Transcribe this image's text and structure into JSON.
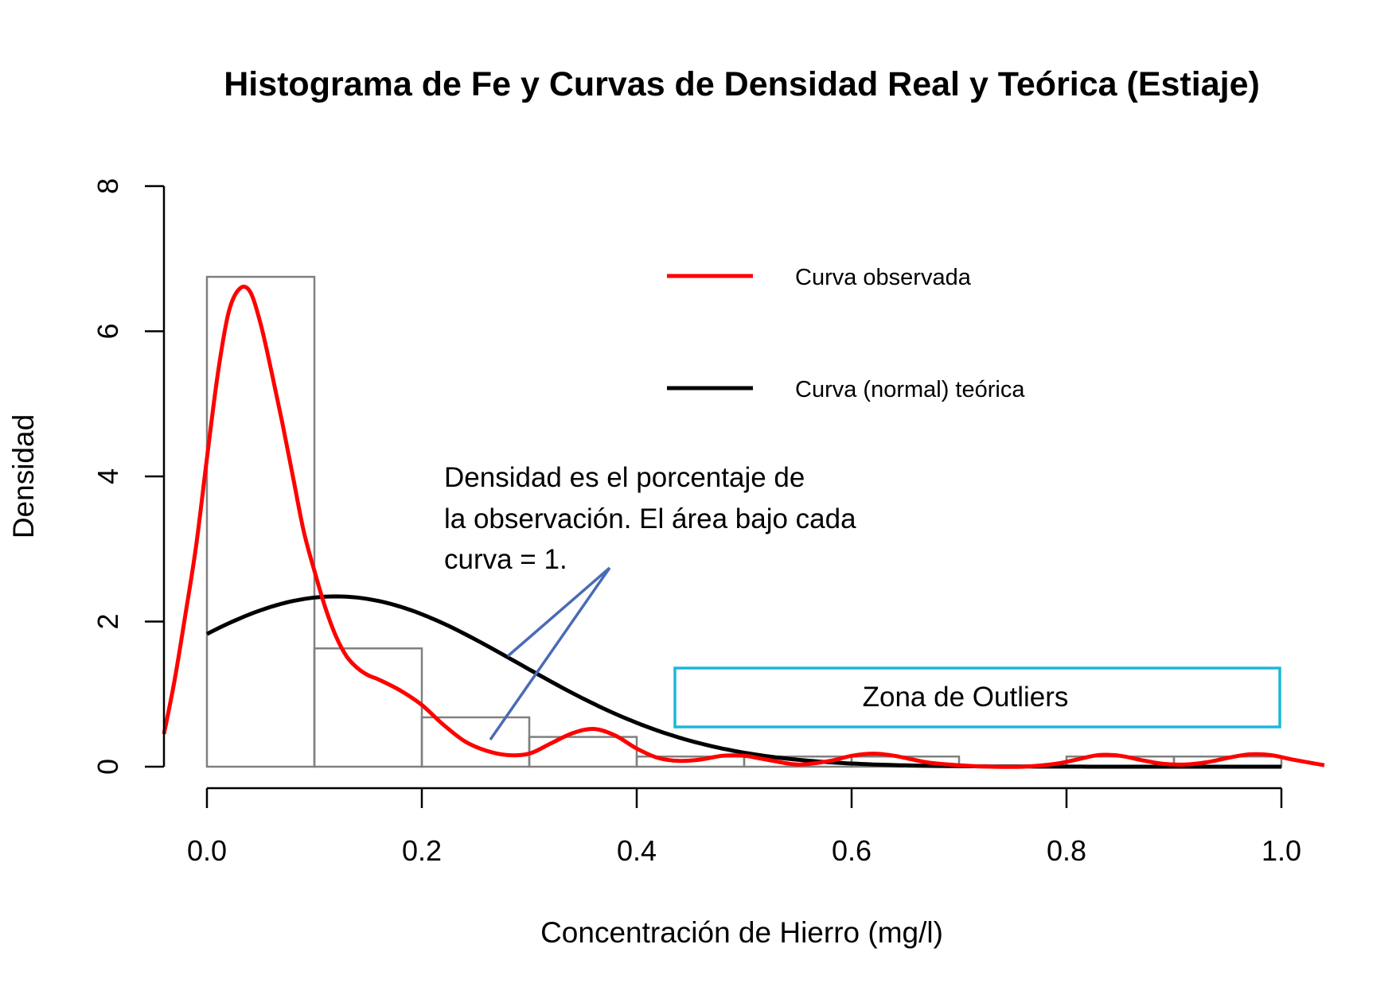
{
  "chart_data": {
    "type": "bar",
    "title": "Histograma de Fe y Curvas de Densidad Real y Teórica (Estiaje)",
    "xlabel": "Concentración de Hierro (mg/l)",
    "ylabel": "Densidad",
    "xlim": [
      -0.04,
      1.04
    ],
    "ylim": [
      0,
      8
    ],
    "x_ticks": [
      "0.0",
      "0.2",
      "0.4",
      "0.6",
      "0.8",
      "1.0"
    ],
    "x_tick_values": [
      0,
      0.2,
      0.4,
      0.6,
      0.8,
      1.0
    ],
    "y_ticks": [
      "0",
      "2",
      "4",
      "6",
      "8"
    ],
    "y_tick_values": [
      0,
      2,
      4,
      6,
      8
    ],
    "grid": false,
    "legend_position": "top-right",
    "histogram": {
      "bin_edges": [
        0,
        0.1,
        0.2,
        0.3,
        0.4,
        0.5,
        0.6,
        0.7,
        0.8,
        0.9,
        1.0
      ],
      "densities": [
        6.75,
        1.63,
        0.68,
        0.41,
        0.14,
        0.14,
        0.14,
        0.0,
        0.14,
        0.14
      ],
      "color": "#808080"
    },
    "series": [
      {
        "name": "Curva observada",
        "type": "line",
        "color": "#ff0000",
        "x": [
          -0.04,
          -0.03,
          -0.02,
          -0.01,
          0.0,
          0.01,
          0.02,
          0.03,
          0.04,
          0.05,
          0.06,
          0.07,
          0.08,
          0.09,
          0.1,
          0.11,
          0.12,
          0.13,
          0.14,
          0.15,
          0.16,
          0.18,
          0.2,
          0.22,
          0.24,
          0.26,
          0.28,
          0.3,
          0.32,
          0.34,
          0.36,
          0.38,
          0.4,
          0.42,
          0.44,
          0.46,
          0.48,
          0.5,
          0.52,
          0.55,
          0.58,
          0.6,
          0.62,
          0.64,
          0.67,
          0.7,
          0.73,
          0.76,
          0.79,
          0.81,
          0.83,
          0.85,
          0.87,
          0.89,
          0.91,
          0.93,
          0.95,
          0.97,
          0.99,
          1.01,
          1.04
        ],
        "values": [
          0.45,
          1.2,
          2.1,
          3.05,
          4.25,
          5.4,
          6.25,
          6.58,
          6.55,
          6.1,
          5.45,
          4.75,
          4.0,
          3.25,
          2.7,
          2.2,
          1.8,
          1.52,
          1.36,
          1.26,
          1.2,
          1.05,
          0.85,
          0.58,
          0.35,
          0.22,
          0.16,
          0.18,
          0.32,
          0.46,
          0.52,
          0.43,
          0.25,
          0.12,
          0.08,
          0.1,
          0.15,
          0.15,
          0.1,
          0.03,
          0.08,
          0.15,
          0.18,
          0.15,
          0.06,
          0.02,
          0.0,
          0.0,
          0.04,
          0.1,
          0.16,
          0.15,
          0.09,
          0.04,
          0.03,
          0.06,
          0.12,
          0.17,
          0.16,
          0.1,
          0.02
        ]
      },
      {
        "name": "Curva (normal) teórica",
        "type": "line",
        "color": "#000000",
        "mean": 0.12,
        "sd": 0.17,
        "x_range": [
          0,
          1.0
        ]
      }
    ],
    "annotations": {
      "note_lines": [
        "Densidad es el porcentaje de",
        "la observación. El área bajo cada",
        "curva = 1."
      ],
      "pointer_color": "#4a6bb5",
      "outlier_label": "Zona de Outliers",
      "outlier_box_color": "#1cb8d8"
    }
  }
}
